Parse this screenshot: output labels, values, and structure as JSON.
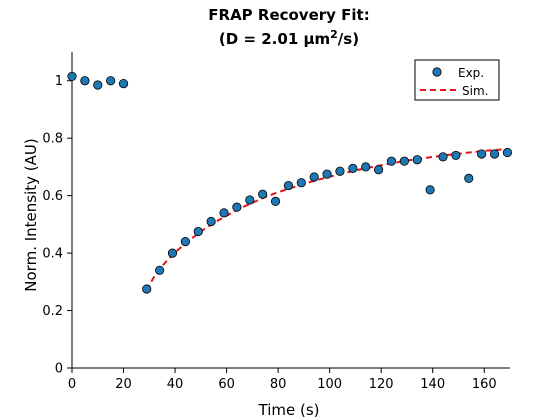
{
  "chart_data": {
    "type": "scatter",
    "title_line1": "FRAP Recovery Fit:",
    "title_line2_prefix": "(D = 2.01 μm",
    "title_line2_sup": "2",
    "title_line2_suffix": "/s)",
    "xlabel": "Time (s)",
    "ylabel": "Norm. Intensity (AU)",
    "xlim": [
      0,
      170
    ],
    "ylim": [
      0,
      1.1
    ],
    "xticks": [
      0,
      20,
      40,
      60,
      80,
      100,
      120,
      140,
      160
    ],
    "xtick_labels": [
      "0",
      "20",
      "40",
      "60",
      "80",
      "100",
      "120",
      "140",
      "160"
    ],
    "yticks": [
      0,
      0.2,
      0.4,
      0.6,
      0.8,
      1
    ],
    "ytick_labels": [
      "0",
      "0.2",
      "0.4",
      "0.6",
      "0.8",
      "1"
    ],
    "grid": false,
    "legend_position": "top-right",
    "series": [
      {
        "name": "Exp.",
        "kind": "scatter",
        "color": "#1f77b4",
        "x": [
          0,
          5,
          10,
          15,
          20,
          29,
          34,
          39,
          44,
          49,
          54,
          59,
          64,
          69,
          74,
          79,
          84,
          89,
          94,
          99,
          104,
          109,
          114,
          119,
          124,
          129,
          134,
          139,
          144,
          149,
          154,
          159,
          164,
          169
        ],
        "y": [
          1.015,
          1.0,
          0.985,
          1.0,
          0.99,
          0.275,
          0.34,
          0.4,
          0.44,
          0.475,
          0.51,
          0.54,
          0.56,
          0.585,
          0.605,
          0.58,
          0.635,
          0.645,
          0.665,
          0.675,
          0.685,
          0.695,
          0.7,
          0.69,
          0.72,
          0.72,
          0.725,
          0.62,
          0.735,
          0.74,
          0.66,
          0.745,
          0.745,
          0.75
        ]
      },
      {
        "name": "Sim.",
        "kind": "line",
        "color": "#e8141c",
        "dash": "dashed",
        "x": [
          29,
          32,
          35,
          38,
          41,
          45,
          50,
          55,
          60,
          65,
          70,
          75,
          80,
          85,
          90,
          95,
          100,
          110,
          120,
          130,
          140,
          150,
          160,
          169
        ],
        "y": [
          0.27,
          0.32,
          0.355,
          0.385,
          0.41,
          0.44,
          0.475,
          0.505,
          0.53,
          0.555,
          0.575,
          0.595,
          0.612,
          0.627,
          0.641,
          0.654,
          0.666,
          0.688,
          0.706,
          0.722,
          0.735,
          0.746,
          0.756,
          0.762
        ]
      }
    ]
  }
}
